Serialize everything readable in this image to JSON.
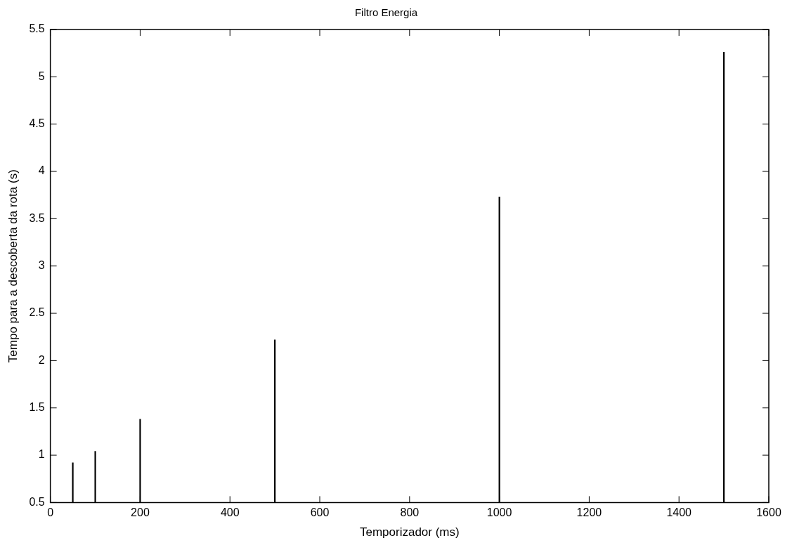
{
  "chart_data": {
    "type": "bar",
    "title": "Filtro Energia",
    "xlabel": "Temporizador (ms)",
    "ylabel": "Tempo para a descoberta da rota (s)",
    "x": [
      50,
      100,
      200,
      500,
      1000,
      1500
    ],
    "values": [
      0.92,
      1.04,
      1.38,
      2.22,
      3.73,
      5.26
    ],
    "color": "#000000",
    "xlim": [
      0,
      1600
    ],
    "xticks": [
      0,
      200,
      400,
      600,
      800,
      1000,
      1200,
      1400,
      1600
    ],
    "ylim": [
      0.5,
      5.5
    ],
    "yticks": [
      0.5,
      1,
      1.5,
      2,
      2.5,
      3,
      3.5,
      4,
      4.5,
      5,
      5.5
    ],
    "grid": false,
    "legend": false
  }
}
